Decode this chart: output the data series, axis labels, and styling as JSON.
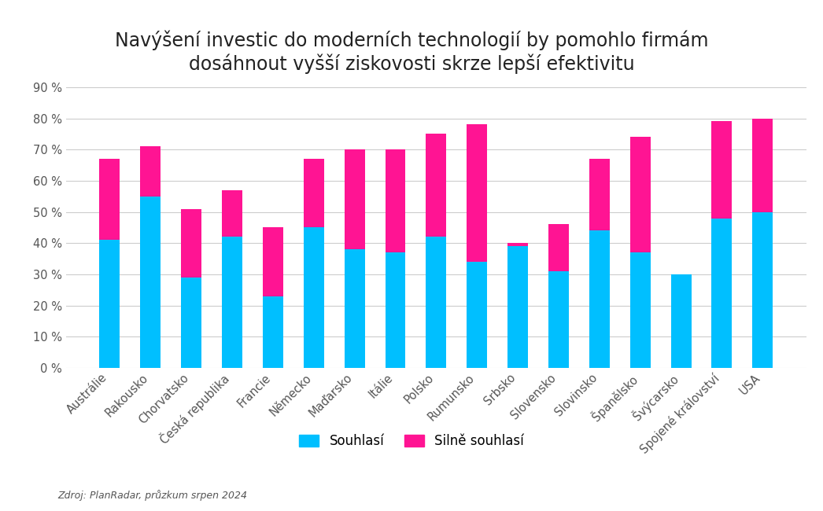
{
  "title_line1": "Navýšení investic do moderních technologií by pomohlo firmám",
  "title_line2": "dosáhnout vyšší ziskovosti skrze lepší efektivitu",
  "categories": [
    "Austrálie",
    "Rakousko",
    "Chorvatsko",
    "Česká republika",
    "Francie",
    "Německo",
    "Maďarsko",
    "Itálie",
    "Polsko",
    "Rumunsko",
    "Srbsko",
    "Slovensko",
    "Slovinsko",
    "Španělsko",
    "Švýcarsko",
    "Spojené království",
    "USA"
  ],
  "souhlasi": [
    41,
    55,
    29,
    42,
    23,
    45,
    38,
    37,
    42,
    34,
    39,
    31,
    44,
    37,
    30,
    48,
    50
  ],
  "silne_souhlasi": [
    26,
    16,
    22,
    15,
    22,
    22,
    32,
    33,
    33,
    44,
    1,
    15,
    23,
    37,
    0,
    31,
    30
  ],
  "color_cyan": "#00BFFF",
  "color_pink": "#FF1493",
  "background_color": "#FFFFFF",
  "ylabel_ticks": [
    "0 %",
    "10 %",
    "20 %",
    "30 %",
    "40 %",
    "50 %",
    "60 %",
    "70 %",
    "80 %",
    "90 %"
  ],
  "ytick_values": [
    0,
    10,
    20,
    30,
    40,
    50,
    60,
    70,
    80,
    90
  ],
  "ylim": [
    0,
    95
  ],
  "legend_souhlasi": "Souhlasí",
  "legend_silne": "Silně souhlasí",
  "source_text": "Zdroj: PlanRadar, průzkum srpen 2024",
  "title_fontsize": 17,
  "tick_fontsize": 10.5,
  "legend_fontsize": 12,
  "source_fontsize": 9
}
